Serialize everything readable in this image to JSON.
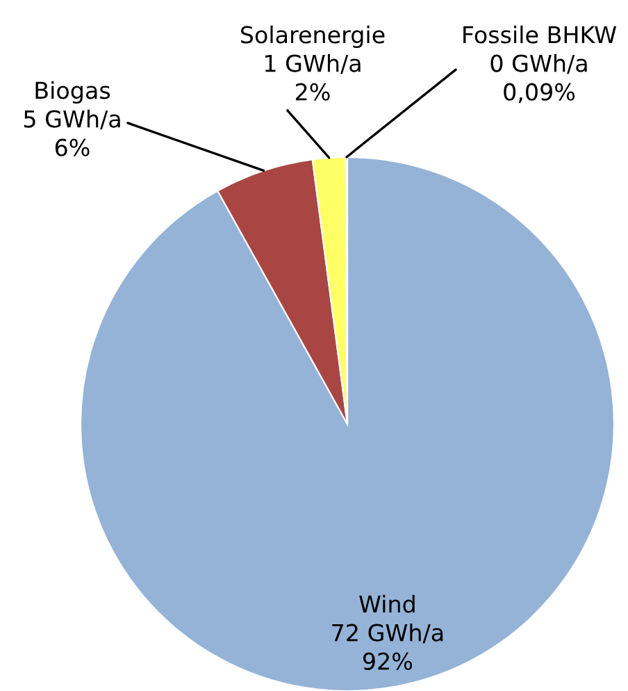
{
  "chart_data": {
    "type": "pie",
    "categories": [
      "Wind",
      "Biogas",
      "Solarenergie",
      "Fossile BHKW"
    ],
    "values": [
      92,
      6,
      2,
      0.09
    ],
    "value_labels": [
      "72 GWh/a\n92%",
      "5 GWh/a\n6%",
      "1 GWh/a\n2%",
      "0 GWh/a\n0,09%"
    ],
    "colors": [
      "#95b3d7",
      "#a94643",
      "#ffff66",
      "#7e9a3d"
    ]
  }
}
